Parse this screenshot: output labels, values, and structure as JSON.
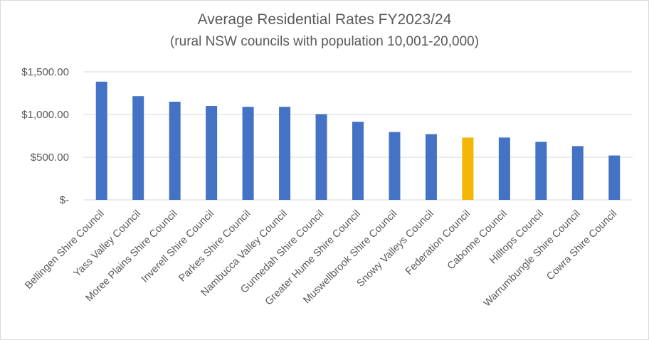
{
  "chart_data": {
    "type": "bar",
    "title": "Average Residential Rates FY2023/24",
    "subtitle": "(rural NSW councils with population 10,001-20,000)",
    "categories": [
      "Bellingen Shire Council",
      "Yass Valley Council",
      "Moree Plains Shire Council",
      "Inverell Shire Council",
      "Parkes Shire Council",
      "Nambucca Valley Council",
      "Gunnedah Shire Council",
      "Greater Hume Shire Council",
      "Muswellbrook Shire Council",
      "Snowy Valleys Council",
      "Federation Council",
      "Cabonne Council",
      "Hilltops Council",
      "Warrumbungle Shire Council",
      "Cowra Shire Council"
    ],
    "values": [
      1385,
      1215,
      1150,
      1100,
      1090,
      1090,
      1005,
      915,
      795,
      770,
      730,
      730,
      680,
      630,
      520
    ],
    "highlight_index": 10,
    "colors": {
      "bar": "#4472C4",
      "highlight": "#F2B705",
      "grid": "#d9d9d9",
      "text": "#595959"
    },
    "ylim": [
      0,
      1500
    ],
    "yticks": [
      0,
      500,
      1000,
      1500
    ],
    "ytick_labels": [
      "$-",
      "$500.00",
      "$1,000.00",
      "$1,500.00"
    ],
    "xlabel": "",
    "ylabel": "",
    "grid": true,
    "legend": "none"
  }
}
